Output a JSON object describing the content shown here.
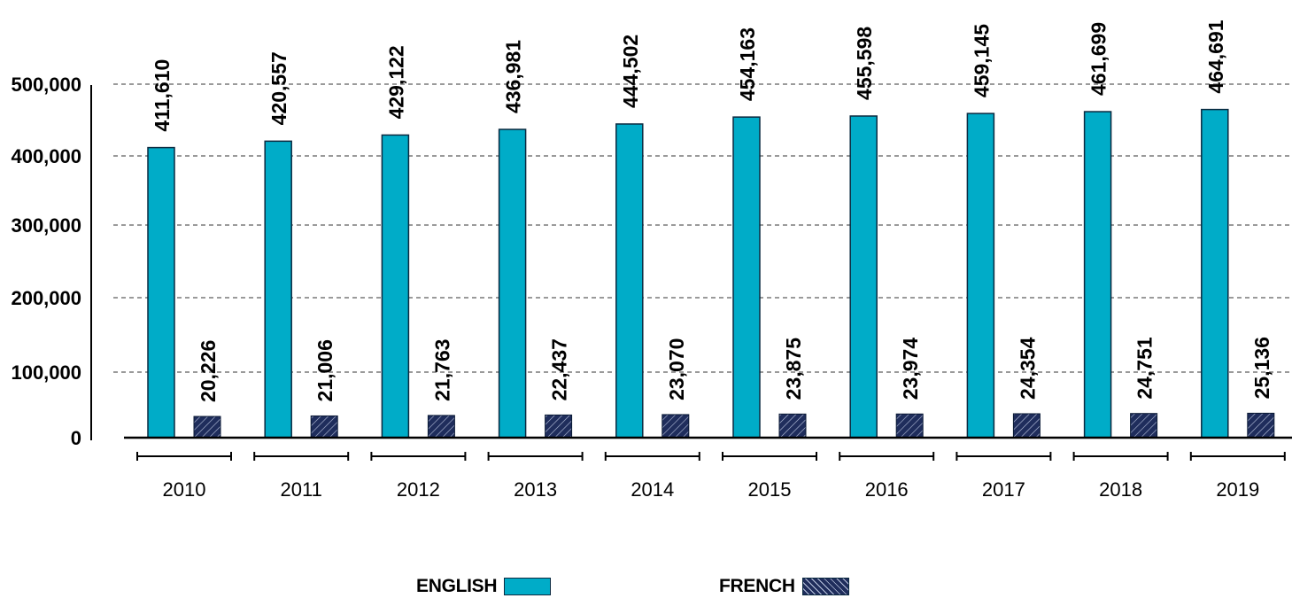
{
  "chart_data": {
    "type": "bar",
    "title": "",
    "xlabel": "",
    "ylabel": "",
    "categories": [
      "2010",
      "2011",
      "2012",
      "2013",
      "2014",
      "2015",
      "2016",
      "2017",
      "2018",
      "2019"
    ],
    "series": [
      {
        "name": "ENGLISH",
        "color": "#00acc8",
        "values": [
          411610,
          420557,
          429122,
          436981,
          444502,
          454163,
          455598,
          459145,
          461699,
          464691
        ],
        "labels": [
          "411,610",
          "420,557",
          "429,122",
          "436,981",
          "444,502",
          "454,163",
          "455,598",
          "459,145",
          "461,699",
          "464,691"
        ]
      },
      {
        "name": "FRENCH",
        "color": "#1f2d5c",
        "pattern": "diagonal-hatch",
        "values": [
          20226,
          21006,
          21763,
          22437,
          23070,
          23875,
          23974,
          24354,
          24751,
          25136
        ],
        "labels": [
          "20,226",
          "21,006",
          "21,763",
          "22,437",
          "23,070",
          "23,875",
          "23,974",
          "24,354",
          "24,751",
          "25,136"
        ]
      }
    ],
    "y_ticks": [
      0,
      100000,
      200000,
      300000,
      400000,
      500000
    ],
    "y_tick_labels": [
      "0",
      "100,000",
      "200,000",
      "300,000",
      "400,000",
      "500,000"
    ],
    "ylim": [
      0,
      500000
    ],
    "grid": "horizontal-dashed",
    "legend_position": "bottom"
  },
  "legend": {
    "english_label": "ENGLISH",
    "french_label": "FRENCH"
  }
}
